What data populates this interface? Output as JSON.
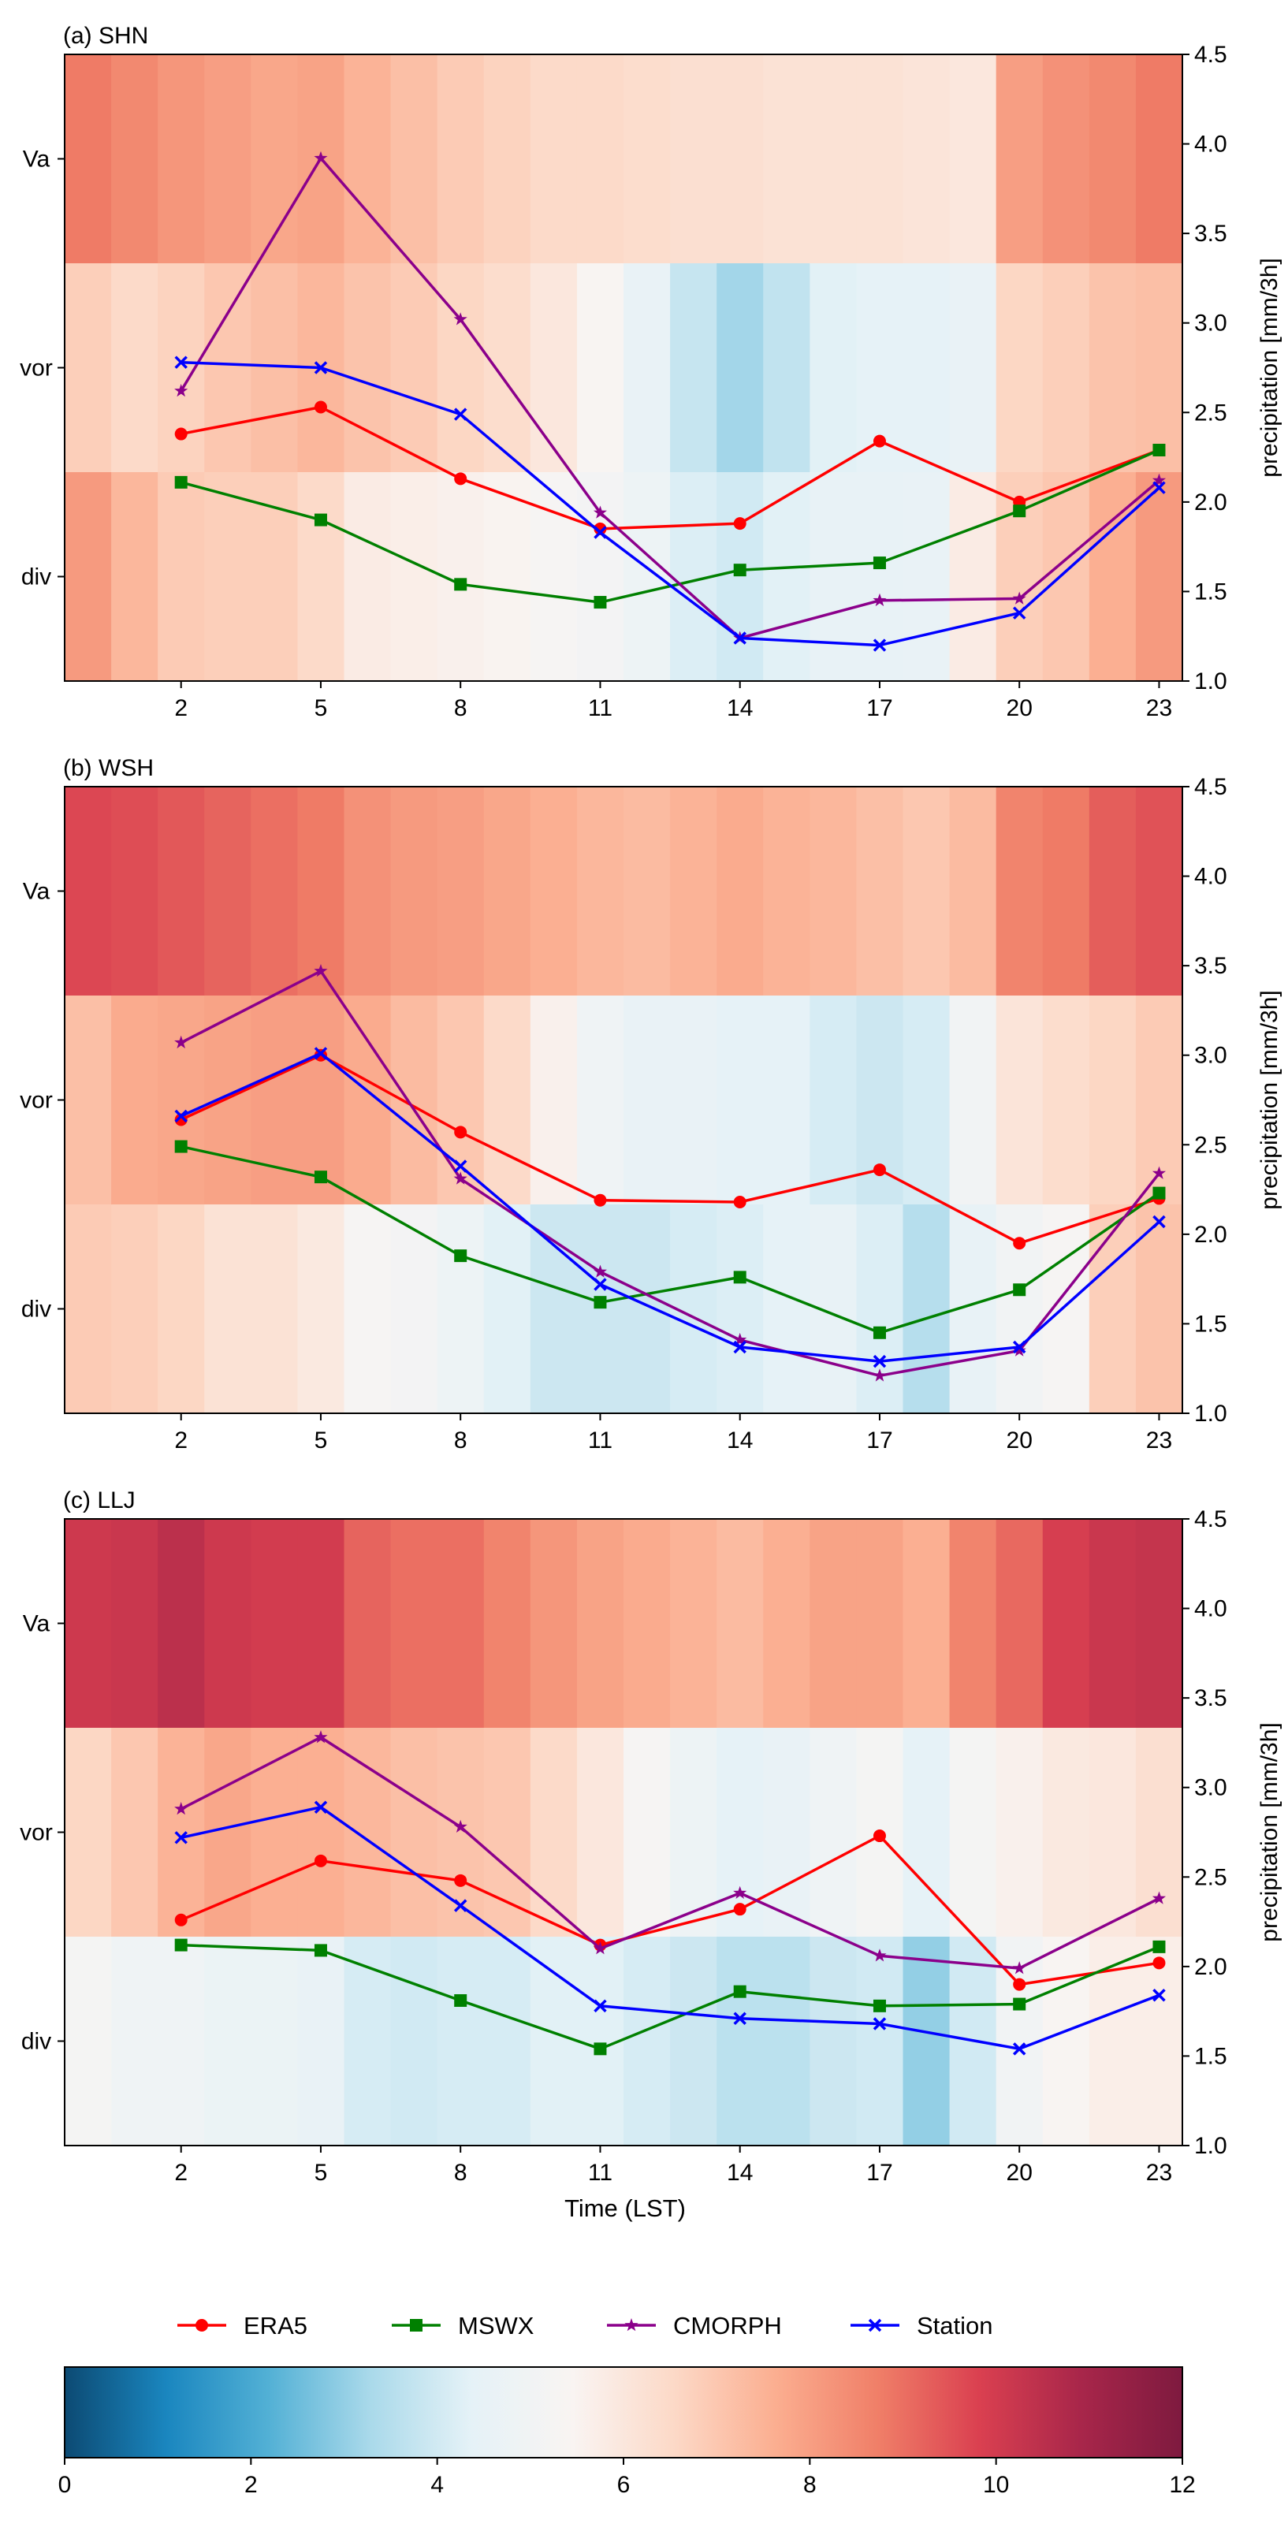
{
  "figure": {
    "xlabel": "Time (LST)",
    "colorbar": {
      "min": 0,
      "max": 12,
      "ticks": [
        "0",
        "2",
        "4",
        "6",
        "8",
        "10",
        "12"
      ],
      "stops": [
        "#0c4a73",
        "#1a86bf",
        "#52b0d5",
        "#a9d9ea",
        "#e5f2f7",
        "#f9f4f2",
        "#fcd9c7",
        "#fbae90",
        "#f07f68",
        "#da4050",
        "#a8264a",
        "#7e1a3f"
      ]
    },
    "legend": [
      {
        "name": "ERA5",
        "color": "#ff0000",
        "marker": "circle"
      },
      {
        "name": "MSWX",
        "color": "#008000",
        "marker": "square"
      },
      {
        "name": "CMORPH",
        "color": "#8b008b",
        "marker": "star"
      },
      {
        "name": "Station",
        "color": "#0000ff",
        "marker": "x"
      }
    ]
  },
  "chart_data": [
    {
      "type": "heatmap+line",
      "title": "(a) SHN",
      "rows": [
        "Va",
        "vor",
        "div"
      ],
      "xticks": [
        "2",
        "5",
        "8",
        "11",
        "14",
        "17",
        "20",
        "23"
      ],
      "x_hours": [
        2,
        5,
        8,
        11,
        14,
        17,
        20,
        23
      ],
      "ylabel_right": "precipitation [mm/3h]",
      "ylim": [
        1.0,
        4.5
      ],
      "yticks": [
        "1.0",
        "1.5",
        "2.0",
        "2.5",
        "3.0",
        "3.5",
        "4.0",
        "4.5"
      ],
      "heatmap": {
        "Va": [
          8.8,
          8.5,
          8.2,
          8.0,
          7.8,
          7.9,
          7.5,
          7.2,
          6.9,
          6.7,
          6.5,
          6.5,
          6.4,
          6.3,
          6.3,
          6.2,
          6.2,
          6.2,
          6.1,
          6.0,
          8.0,
          8.3,
          8.5,
          8.8
        ],
        "vor": [
          6.8,
          6.5,
          6.7,
          7.0,
          7.2,
          7.4,
          7.1,
          6.9,
          6.6,
          6.4,
          6.0,
          5.4,
          4.6,
          3.8,
          3.2,
          3.7,
          4.3,
          4.4,
          4.4,
          4.6,
          6.6,
          6.8,
          7.1,
          7.2
        ],
        "div": [
          8.1,
          7.4,
          6.9,
          6.8,
          6.8,
          6.5,
          5.8,
          5.7,
          5.6,
          5.5,
          5.3,
          5.1,
          4.8,
          4.2,
          4.0,
          4.3,
          4.5,
          4.5,
          4.6,
          5.8,
          6.8,
          7.0,
          7.6,
          8.1
        ]
      },
      "series": [
        {
          "name": "ERA5",
          "values": [
            2.38,
            2.53,
            2.13,
            1.85,
            1.88,
            2.34,
            2.0,
            2.29
          ]
        },
        {
          "name": "MSWX",
          "values": [
            2.11,
            1.9,
            1.54,
            1.44,
            1.62,
            1.66,
            1.95,
            2.29
          ]
        },
        {
          "name": "CMORPH",
          "values": [
            2.62,
            3.92,
            3.02,
            1.94,
            1.24,
            1.45,
            1.46,
            2.12
          ]
        },
        {
          "name": "Station",
          "values": [
            2.78,
            2.75,
            2.49,
            1.83,
            1.24,
            1.2,
            1.38,
            2.08
          ]
        }
      ]
    },
    {
      "type": "heatmap+line",
      "title": "(b) WSH",
      "rows": [
        "Va",
        "vor",
        "div"
      ],
      "xticks": [
        "2",
        "5",
        "8",
        "11",
        "14",
        "17",
        "20",
        "23"
      ],
      "x_hours": [
        2,
        5,
        8,
        11,
        14,
        17,
        20,
        23
      ],
      "ylabel_right": "precipitation [mm/3h]",
      "ylim": [
        1.0,
        4.5
      ],
      "yticks": [
        "1.0",
        "1.5",
        "2.0",
        "2.5",
        "3.0",
        "3.5",
        "4.0",
        "4.5"
      ],
      "heatmap": {
        "Va": [
          9.7,
          9.6,
          9.4,
          9.2,
          9.0,
          8.8,
          8.3,
          8.1,
          8.0,
          7.8,
          7.6,
          7.4,
          7.3,
          7.5,
          7.7,
          7.5,
          7.4,
          7.2,
          7.0,
          7.3,
          8.6,
          8.8,
          9.3,
          9.5
        ],
        "vor": [
          7.2,
          7.7,
          7.8,
          7.9,
          8.0,
          8.0,
          7.7,
          7.3,
          7.0,
          6.5,
          5.6,
          4.9,
          4.6,
          4.6,
          4.4,
          4.4,
          4.1,
          3.9,
          4.1,
          5.0,
          6.1,
          6.4,
          6.6,
          6.9
        ],
        "div": [
          6.9,
          6.8,
          6.6,
          6.2,
          6.2,
          5.9,
          5.3,
          5.1,
          4.8,
          4.3,
          3.9,
          3.9,
          3.9,
          4.1,
          4.2,
          4.4,
          4.5,
          4.2,
          3.5,
          4.5,
          5.0,
          5.3,
          6.8,
          7.1
        ]
      },
      "series": [
        {
          "name": "ERA5",
          "values": [
            2.64,
            3.0,
            2.57,
            2.19,
            2.18,
            2.36,
            1.95,
            2.2
          ]
        },
        {
          "name": "MSWX",
          "values": [
            2.49,
            2.32,
            1.88,
            1.62,
            1.76,
            1.45,
            1.69,
            2.23
          ]
        },
        {
          "name": "CMORPH",
          "values": [
            3.07,
            3.47,
            2.31,
            1.79,
            1.41,
            1.21,
            1.35,
            2.34
          ]
        },
        {
          "name": "Station",
          "values": [
            2.66,
            3.01,
            2.38,
            1.72,
            1.37,
            1.29,
            1.37,
            2.07
          ]
        }
      ]
    },
    {
      "type": "heatmap+line",
      "title": "(c) LLJ",
      "rows": [
        "Va",
        "vor",
        "div"
      ],
      "xticks": [
        "2",
        "5",
        "8",
        "11",
        "14",
        "17",
        "20",
        "23"
      ],
      "x_hours": [
        2,
        5,
        8,
        11,
        14,
        17,
        20,
        23
      ],
      "xlabel": "Time (LST)",
      "ylabel_right": "precipitation [mm/3h]",
      "ylim": [
        1.0,
        4.5
      ],
      "yticks": [
        "1.0",
        "1.5",
        "2.0",
        "2.5",
        "3.0",
        "3.5",
        "4.0",
        "4.5"
      ],
      "heatmap": {
        "Va": [
          10.1,
          10.2,
          10.5,
          10.1,
          10.0,
          10.0,
          9.2,
          9.0,
          9.0,
          8.6,
          8.2,
          7.9,
          7.7,
          7.5,
          7.3,
          7.6,
          7.9,
          7.9,
          7.6,
          8.6,
          9.1,
          9.9,
          10.2,
          10.3
        ],
        "vor": [
          6.6,
          7.0,
          7.5,
          7.8,
          7.6,
          7.6,
          7.4,
          7.2,
          7.1,
          7.0,
          6.5,
          6.0,
          5.3,
          4.8,
          4.4,
          4.6,
          4.9,
          5.2,
          4.4,
          5.2,
          5.6,
          5.9,
          6.0,
          6.3
        ],
        "div": [
          5.2,
          4.9,
          4.9,
          4.7,
          4.7,
          4.6,
          4.1,
          4.0,
          4.1,
          4.1,
          4.3,
          4.3,
          4.1,
          3.9,
          3.6,
          3.6,
          3.9,
          4.0,
          3.0,
          4.0,
          5.0,
          5.4,
          5.7,
          5.7
        ]
      },
      "series": [
        {
          "name": "ERA5",
          "values": [
            2.26,
            2.59,
            2.48,
            2.12,
            2.32,
            2.73,
            1.9,
            2.02
          ]
        },
        {
          "name": "MSWX",
          "values": [
            2.12,
            2.09,
            1.81,
            1.54,
            1.86,
            1.78,
            1.79,
            2.11
          ]
        },
        {
          "name": "CMORPH",
          "values": [
            2.88,
            3.28,
            2.78,
            2.1,
            2.41,
            2.06,
            1.99,
            2.38
          ]
        },
        {
          "name": "Station",
          "values": [
            2.72,
            2.89,
            2.34,
            1.78,
            1.71,
            1.68,
            1.54,
            1.84
          ]
        }
      ]
    }
  ]
}
